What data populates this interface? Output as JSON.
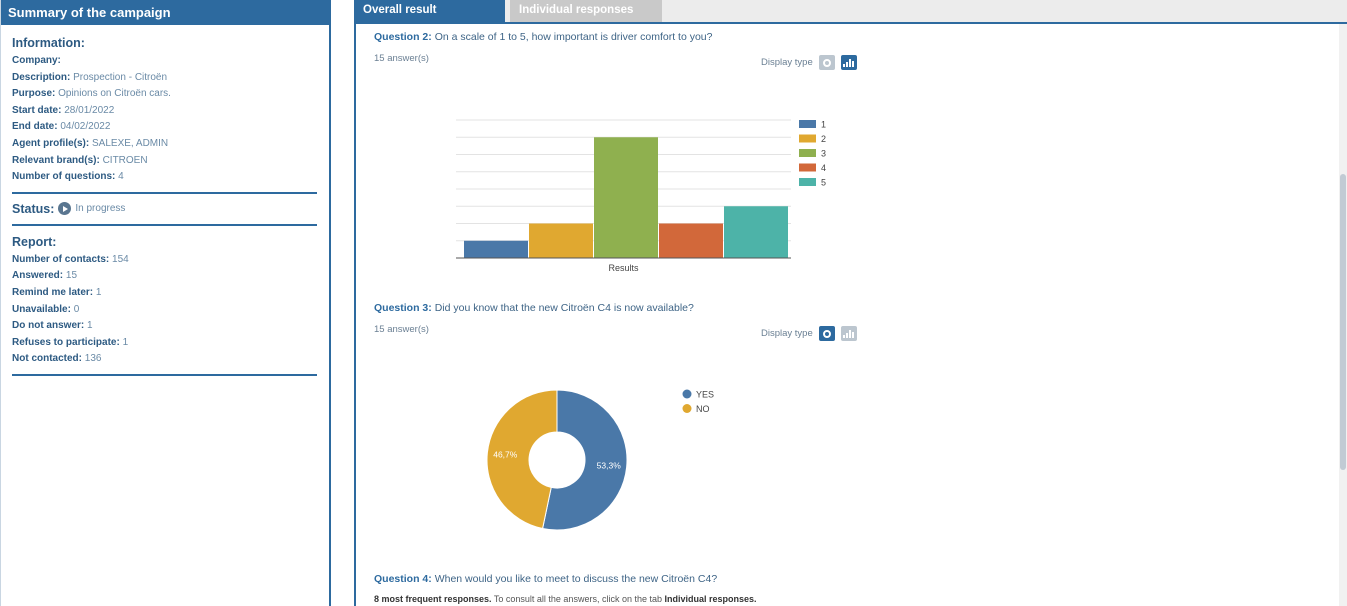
{
  "summary": {
    "header": "Summary of the campaign",
    "information_title": "Information:",
    "info": [
      {
        "label": "Company:",
        "value": ""
      },
      {
        "label": "Description:",
        "value": "Prospection - Citroën"
      },
      {
        "label": "Purpose:",
        "value": "Opinions on Citroën cars."
      },
      {
        "label": "Start date:",
        "value": "28/01/2022"
      },
      {
        "label": "End date:",
        "value": "04/02/2022"
      },
      {
        "label": "Agent profile(s):",
        "value": "SALEXE, ADMIN"
      },
      {
        "label": "Relevant brand(s):",
        "value": "CITROEN"
      },
      {
        "label": "Number of questions:",
        "value": "4"
      }
    ],
    "status_title": "Status:",
    "status_value": "In progress",
    "report_title": "Report:",
    "report": [
      {
        "label": "Number of contacts:",
        "value": "154"
      },
      {
        "label": "Answered:",
        "value": "15"
      },
      {
        "label": "Remind me later:",
        "value": "1"
      },
      {
        "label": "Unavailable:",
        "value": "0"
      },
      {
        "label": "Do not answer:",
        "value": "1"
      },
      {
        "label": "Refuses to participate:",
        "value": "1"
      },
      {
        "label": "Not contacted:",
        "value": "136"
      }
    ]
  },
  "tabs": {
    "overall": "Overall result",
    "individual": "Individual responses"
  },
  "display_type_label": "Display type",
  "questions": {
    "q2": {
      "number": "Question 2:",
      "text": "On a scale of 1 to 5, how important is driver comfort to you?",
      "answers": "15 answer(s)"
    },
    "q3": {
      "number": "Question 3:",
      "text": "Did you know that the new Citroën C4 is now available?",
      "answers": "15 answer(s)"
    },
    "q4": {
      "number": "Question 4:",
      "text": "When would you like to meet to discuss the new Citroën C4?",
      "note_bold": "8 most frequent responses.",
      "note_text": "To consult all the answers, click on the tab",
      "note_link": "Individual responses."
    }
  },
  "chart_data": [
    {
      "type": "bar",
      "categories": [
        "Results"
      ],
      "series": [
        {
          "name": "1",
          "values": [
            1
          ],
          "color": "#4a78a8"
        },
        {
          "name": "2",
          "values": [
            2
          ],
          "color": "#e0a830"
        },
        {
          "name": "3",
          "values": [
            7
          ],
          "color": "#8fb04f"
        },
        {
          "name": "4",
          "values": [
            2
          ],
          "color": "#d2683a"
        },
        {
          "name": "5",
          "values": [
            3
          ],
          "color": "#4db3a8"
        }
      ],
      "ylim": [
        0,
        8
      ],
      "grid": true,
      "legend": "right"
    },
    {
      "type": "pie",
      "labels": [
        "YES",
        "NO"
      ],
      "values": [
        53.3,
        46.7
      ],
      "value_labels": [
        "53,3%",
        "46,7%"
      ],
      "colors": [
        "#4a78a8",
        "#e0a830"
      ],
      "donut": true,
      "legend": "right"
    }
  ]
}
